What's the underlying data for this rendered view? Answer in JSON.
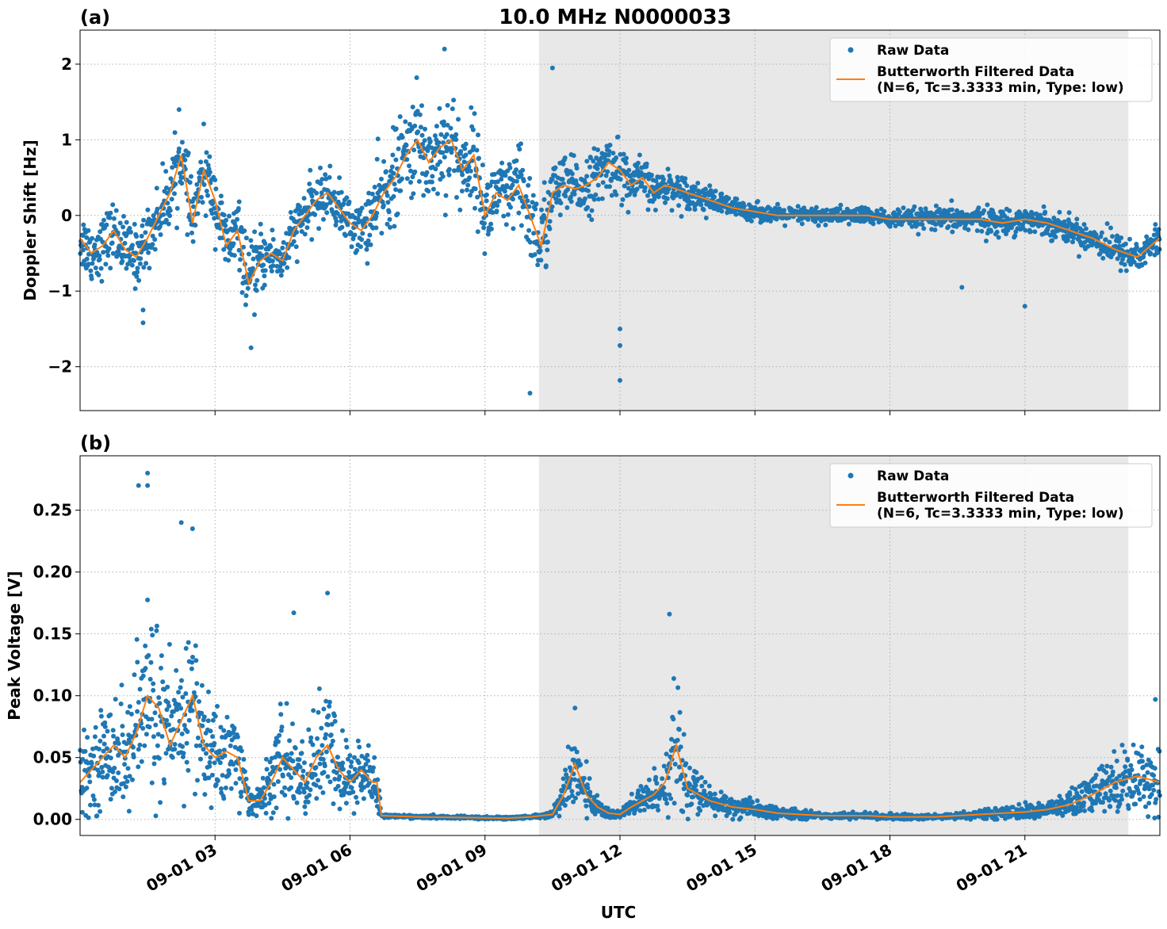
{
  "figure": {
    "title": "10.0 MHz N0000033",
    "xlabel": "UTC"
  },
  "colors": {
    "raw": "#1f77b4",
    "filtered": "#ff7f0e",
    "night_shade": "#e8e8e8",
    "grid": "#b0b0b0"
  },
  "legend": {
    "raw_label": "Raw Data",
    "filtered_label_line1": "Butterworth Filtered Data",
    "filtered_label_line2": "(N=6, Tc=3.3333 min, Type: low)"
  },
  "chart_data": [
    {
      "type": "scatter",
      "panel_label": "(a)",
      "title": "10.0 MHz N0000033",
      "xlabel": "",
      "ylabel": "Doppler Shift [Hz]",
      "xlim_hours": [
        0,
        24
      ],
      "ylim": [
        -2.58,
        2.45
      ],
      "yticks": [
        -2,
        -1,
        0,
        1,
        2
      ],
      "ytick_labels": [
        "−2",
        "−1",
        "0",
        "1",
        "2"
      ],
      "xtick_hours": [
        3,
        6,
        9,
        12,
        15,
        18,
        21
      ],
      "xtick_labels": [],
      "shaded_region_hours": [
        10.2,
        23.3
      ],
      "grid": true,
      "legend_position": "upper-right",
      "series": [
        {
          "name": "Butterworth Filtered Data (N=6, Tc=3.3333 min, Type: low)",
          "kind": "line",
          "x_hours": [
            0,
            0.25,
            0.5,
            0.75,
            1.0,
            1.25,
            1.5,
            1.75,
            2.0,
            2.25,
            2.5,
            2.75,
            3.0,
            3.25,
            3.5,
            3.75,
            4.0,
            4.25,
            4.5,
            4.75,
            5.0,
            5.25,
            5.5,
            5.75,
            6.0,
            6.25,
            6.5,
            6.75,
            7.0,
            7.25,
            7.5,
            7.75,
            8.0,
            8.25,
            8.5,
            8.75,
            9.0,
            9.25,
            9.5,
            9.75,
            10.0,
            10.25,
            10.5,
            10.75,
            11.0,
            11.25,
            11.5,
            11.75,
            12.0,
            12.25,
            12.5,
            12.75,
            13.0,
            13.5,
            14.0,
            14.5,
            15.0,
            15.5,
            16.0,
            16.5,
            17.0,
            17.5,
            18.0,
            18.5,
            19.0,
            19.5,
            20.0,
            20.5,
            21.0,
            21.5,
            22.0,
            22.5,
            23.0,
            23.5,
            24.0
          ],
          "y": [
            -0.3,
            -0.5,
            -0.4,
            -0.2,
            -0.45,
            -0.55,
            -0.3,
            0.0,
            0.3,
            0.8,
            -0.1,
            0.6,
            0.2,
            -0.4,
            -0.2,
            -0.9,
            -0.6,
            -0.5,
            -0.6,
            -0.2,
            0.0,
            0.2,
            0.3,
            0.1,
            -0.1,
            -0.2,
            0.0,
            0.3,
            0.5,
            0.8,
            1.0,
            0.7,
            0.9,
            1.0,
            0.6,
            0.8,
            0.0,
            0.3,
            0.2,
            0.4,
            0.0,
            -0.4,
            0.3,
            0.4,
            0.35,
            0.4,
            0.5,
            0.7,
            0.6,
            0.4,
            0.5,
            0.3,
            0.4,
            0.3,
            0.2,
            0.1,
            0.05,
            0.0,
            0.0,
            0.0,
            0.0,
            0.0,
            -0.05,
            -0.05,
            -0.05,
            -0.05,
            -0.05,
            -0.1,
            -0.05,
            -0.1,
            -0.2,
            -0.3,
            -0.45,
            -0.55,
            -0.3
          ]
        },
        {
          "name": "Raw Data",
          "kind": "points",
          "x_hours": [
            0,
            0.25,
            0.5,
            0.75,
            1.0,
            1.25,
            1.5,
            1.75,
            2.0,
            2.25,
            2.5,
            2.75,
            3.0,
            3.25,
            3.5,
            3.75,
            4.0,
            4.25,
            4.5,
            4.75,
            5.0,
            5.25,
            5.5,
            5.75,
            6.0,
            6.25,
            6.5,
            6.75,
            7.0,
            7.25,
            7.5,
            7.75,
            8.0,
            8.25,
            8.5,
            8.75,
            9.0,
            9.25,
            9.5,
            9.75,
            10.0,
            10.25,
            10.5,
            10.75,
            11.0,
            11.25,
            11.5,
            11.75,
            12.0,
            12.25,
            12.5,
            12.75,
            13.0,
            13.5,
            14.0,
            14.5,
            15.0,
            15.5,
            16.0,
            16.5,
            17.0,
            17.5,
            18.0,
            18.5,
            19.0,
            19.5,
            20.0,
            20.5,
            21.0,
            21.5,
            22.0,
            22.5,
            23.0,
            23.5,
            24.0
          ],
          "y_center": [
            -0.3,
            -0.5,
            -0.4,
            -0.2,
            -0.45,
            -0.55,
            -0.3,
            0.0,
            0.3,
            0.8,
            -0.1,
            0.6,
            0.2,
            -0.4,
            -0.2,
            -0.9,
            -0.6,
            -0.5,
            -0.6,
            -0.2,
            0.0,
            0.2,
            0.3,
            0.1,
            -0.1,
            -0.2,
            0.0,
            0.3,
            0.5,
            0.8,
            1.0,
            0.7,
            0.9,
            1.0,
            0.6,
            0.8,
            0.0,
            0.3,
            0.2,
            0.4,
            0.0,
            -0.4,
            0.3,
            0.4,
            0.35,
            0.4,
            0.5,
            0.7,
            0.6,
            0.4,
            0.5,
            0.3,
            0.4,
            0.3,
            0.2,
            0.1,
            0.05,
            0.0,
            0.0,
            0.0,
            0.0,
            0.0,
            -0.05,
            -0.05,
            -0.05,
            -0.05,
            -0.05,
            -0.1,
            -0.05,
            -0.1,
            -0.2,
            -0.3,
            -0.45,
            -0.55,
            -0.3
          ],
          "y_spread": [
            0.35,
            0.35,
            0.35,
            0.35,
            0.35,
            0.35,
            0.35,
            0.35,
            0.4,
            0.4,
            0.4,
            0.4,
            0.4,
            0.4,
            0.4,
            0.4,
            0.4,
            0.3,
            0.3,
            0.3,
            0.3,
            0.3,
            0.3,
            0.3,
            0.3,
            0.3,
            0.5,
            0.5,
            0.55,
            0.55,
            0.6,
            0.6,
            0.6,
            0.6,
            0.55,
            0.5,
            0.5,
            0.45,
            0.45,
            0.5,
            0.55,
            0.6,
            0.4,
            0.35,
            0.35,
            0.35,
            0.35,
            0.35,
            0.35,
            0.3,
            0.25,
            0.2,
            0.2,
            0.18,
            0.15,
            0.12,
            0.1,
            0.1,
            0.1,
            0.1,
            0.1,
            0.1,
            0.1,
            0.12,
            0.12,
            0.15,
            0.15,
            0.15,
            0.15,
            0.15,
            0.15,
            0.18,
            0.2,
            0.2,
            0.2
          ],
          "outliers": [
            [
              1.4,
              -1.25
            ],
            [
              1.4,
              -1.42
            ],
            [
              3.8,
              -1.75
            ],
            [
              10.0,
              -2.35
            ],
            [
              12.0,
              -1.5
            ],
            [
              12.0,
              -1.72
            ],
            [
              12.0,
              -2.18
            ],
            [
              10.5,
              1.95
            ],
            [
              8.1,
              2.2
            ],
            [
              2.2,
              1.4
            ],
            [
              19.6,
              -0.95
            ],
            [
              21.0,
              -1.2
            ]
          ]
        }
      ]
    },
    {
      "type": "scatter",
      "panel_label": "(b)",
      "title": "",
      "xlabel": "UTC",
      "ylabel": "Peak Voltage [V]",
      "xlim_hours": [
        0,
        24
      ],
      "ylim": [
        -0.013,
        0.294
      ],
      "yticks": [
        0.0,
        0.05,
        0.1,
        0.15,
        0.2,
        0.25
      ],
      "ytick_labels": [
        "0.00",
        "0.05",
        "0.10",
        "0.15",
        "0.20",
        "0.25"
      ],
      "xtick_hours": [
        3,
        6,
        9,
        12,
        15,
        18,
        21
      ],
      "xtick_labels": [
        "09-01 03",
        "09-01 06",
        "09-01 09",
        "09-01 12",
        "09-01 15",
        "09-01 18",
        "09-01 21"
      ],
      "shaded_region_hours": [
        10.2,
        23.3
      ],
      "grid": true,
      "legend_position": "upper-right",
      "series": [
        {
          "name": "Butterworth Filtered Data (N=6, Tc=3.3333 min, Type: low)",
          "kind": "line",
          "x_hours": [
            0,
            0.25,
            0.5,
            0.75,
            1.0,
            1.25,
            1.5,
            1.75,
            2.0,
            2.25,
            2.5,
            2.75,
            3.0,
            3.25,
            3.5,
            3.75,
            4.0,
            4.25,
            4.5,
            4.75,
            5.0,
            5.25,
            5.5,
            5.75,
            6.0,
            6.25,
            6.5,
            6.6,
            6.7,
            7.5,
            8.5,
            9.5,
            10.0,
            10.5,
            10.75,
            11.0,
            11.25,
            11.5,
            11.75,
            12.0,
            12.25,
            12.5,
            12.75,
            13.0,
            13.25,
            13.5,
            13.75,
            14.0,
            14.5,
            15.0,
            15.5,
            16.0,
            16.5,
            17.0,
            17.5,
            18.0,
            18.5,
            19.0,
            19.5,
            20.0,
            20.5,
            21.0,
            21.5,
            22.0,
            22.5,
            23.0,
            23.5,
            24.0
          ],
          "y": [
            0.03,
            0.04,
            0.05,
            0.06,
            0.05,
            0.07,
            0.1,
            0.09,
            0.06,
            0.08,
            0.1,
            0.06,
            0.05,
            0.055,
            0.05,
            0.015,
            0.015,
            0.03,
            0.05,
            0.04,
            0.03,
            0.05,
            0.06,
            0.04,
            0.03,
            0.04,
            0.03,
            0.03,
            0.003,
            0.002,
            0.0015,
            0.001,
            0.002,
            0.004,
            0.02,
            0.045,
            0.02,
            0.01,
            0.005,
            0.004,
            0.01,
            0.015,
            0.02,
            0.03,
            0.06,
            0.025,
            0.02,
            0.015,
            0.01,
            0.008,
            0.005,
            0.004,
            0.003,
            0.003,
            0.003,
            0.002,
            0.002,
            0.002,
            0.003,
            0.004,
            0.005,
            0.006,
            0.008,
            0.012,
            0.02,
            0.03,
            0.035,
            0.03
          ]
        },
        {
          "name": "Raw Data",
          "kind": "points",
          "x_hours": [
            0,
            0.25,
            0.5,
            0.75,
            1.0,
            1.25,
            1.5,
            1.75,
            2.0,
            2.25,
            2.5,
            2.75,
            3.0,
            3.25,
            3.5,
            3.75,
            4.0,
            4.25,
            4.5,
            4.75,
            5.0,
            5.25,
            5.5,
            5.75,
            6.0,
            6.25,
            6.5,
            6.6,
            6.7,
            7.5,
            8.5,
            9.5,
            10.0,
            10.5,
            10.75,
            11.0,
            11.25,
            11.5,
            11.75,
            12.0,
            12.25,
            12.5,
            12.75,
            13.0,
            13.25,
            13.5,
            13.75,
            14.0,
            14.5,
            15.0,
            15.5,
            16.0,
            16.5,
            17.0,
            17.5,
            18.0,
            18.5,
            19.0,
            19.5,
            20.0,
            20.5,
            21.0,
            21.5,
            22.0,
            22.5,
            23.0,
            23.5,
            24.0
          ],
          "y_center": [
            0.03,
            0.04,
            0.05,
            0.06,
            0.05,
            0.07,
            0.1,
            0.09,
            0.06,
            0.08,
            0.1,
            0.06,
            0.05,
            0.055,
            0.05,
            0.015,
            0.015,
            0.03,
            0.05,
            0.04,
            0.03,
            0.05,
            0.06,
            0.04,
            0.03,
            0.04,
            0.03,
            0.03,
            0.003,
            0.002,
            0.0015,
            0.001,
            0.002,
            0.004,
            0.02,
            0.045,
            0.02,
            0.01,
            0.005,
            0.004,
            0.01,
            0.015,
            0.02,
            0.03,
            0.06,
            0.025,
            0.02,
            0.015,
            0.01,
            0.008,
            0.005,
            0.004,
            0.003,
            0.003,
            0.003,
            0.002,
            0.002,
            0.002,
            0.003,
            0.004,
            0.005,
            0.006,
            0.008,
            0.012,
            0.02,
            0.03,
            0.035,
            0.03
          ],
          "y_spread": [
            0.025,
            0.03,
            0.035,
            0.045,
            0.04,
            0.05,
            0.07,
            0.065,
            0.04,
            0.05,
            0.065,
            0.04,
            0.035,
            0.04,
            0.035,
            0.01,
            0.01,
            0.025,
            0.04,
            0.03,
            0.025,
            0.04,
            0.045,
            0.03,
            0.025,
            0.03,
            0.025,
            0.025,
            0.001,
            0.001,
            0.001,
            0.001,
            0.001,
            0.002,
            0.015,
            0.03,
            0.015,
            0.008,
            0.004,
            0.003,
            0.008,
            0.012,
            0.015,
            0.025,
            0.04,
            0.02,
            0.015,
            0.01,
            0.008,
            0.006,
            0.004,
            0.003,
            0.002,
            0.002,
            0.002,
            0.002,
            0.002,
            0.002,
            0.002,
            0.003,
            0.004,
            0.005,
            0.006,
            0.01,
            0.015,
            0.022,
            0.025,
            0.025
          ],
          "outliers": [
            [
              1.5,
              0.28
            ],
            [
              1.5,
              0.27
            ],
            [
              1.3,
              0.27
            ],
            [
              2.25,
              0.24
            ],
            [
              2.5,
              0.235
            ],
            [
              13.1,
              0.166
            ],
            [
              5.5,
              0.183
            ],
            [
              4.75,
              0.167
            ],
            [
              11.0,
              0.09
            ],
            [
              23.9,
              0.097
            ]
          ]
        }
      ]
    }
  ]
}
